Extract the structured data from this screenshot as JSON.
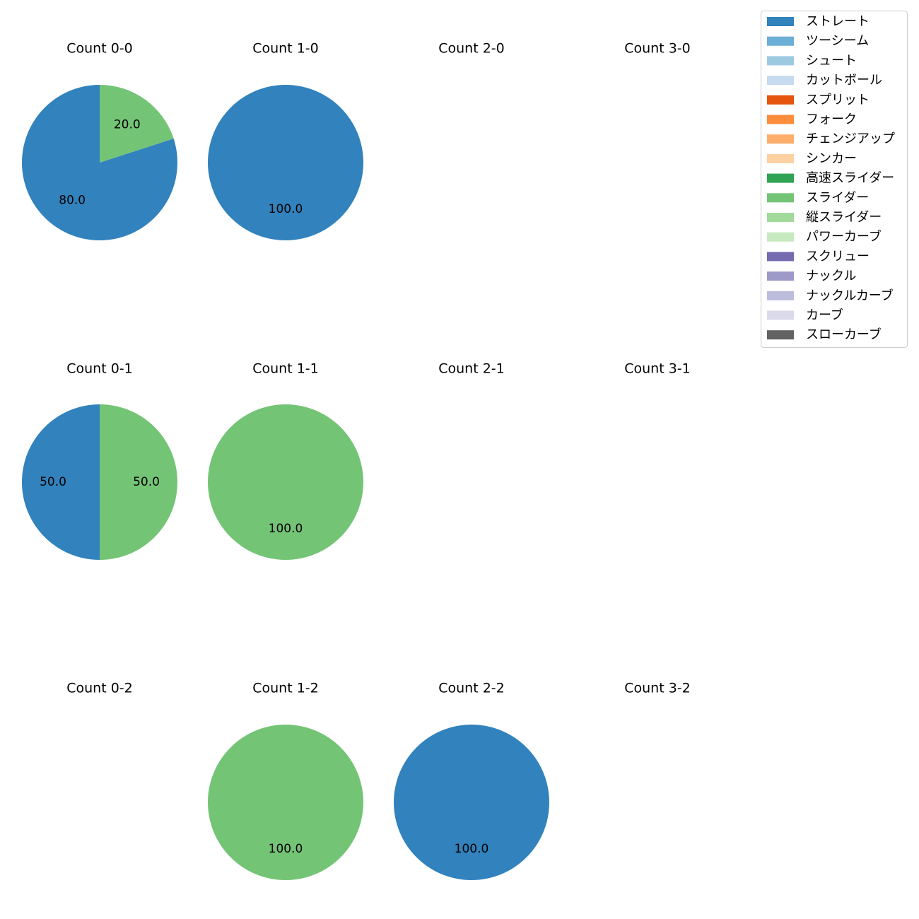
{
  "chart_data": {
    "type": "pie",
    "grid": "3x4 small multiples",
    "legend": {
      "position": "top-right",
      "entries": [
        {
          "name": "ストレート",
          "color": "#3182bd"
        },
        {
          "name": "ツーシーム",
          "color": "#6baed6"
        },
        {
          "name": "シュート",
          "color": "#9ecae1"
        },
        {
          "name": "カットボール",
          "color": "#c6dbef"
        },
        {
          "name": "スプリット",
          "color": "#e6550d"
        },
        {
          "name": "フォーク",
          "color": "#fd8d3c"
        },
        {
          "name": "チェンジアップ",
          "color": "#fdae6b"
        },
        {
          "name": "シンカー",
          "color": "#fdd0a2"
        },
        {
          "name": "高速スライダー",
          "color": "#31a354"
        },
        {
          "name": "スライダー",
          "color": "#74c476"
        },
        {
          "name": "縦スライダー",
          "color": "#a1d99b"
        },
        {
          "name": "パワーカーブ",
          "color": "#c7e9c0"
        },
        {
          "name": "スクリュー",
          "color": "#756bb1"
        },
        {
          "name": "ナックル",
          "color": "#9e9ac8"
        },
        {
          "name": "ナックルカーブ",
          "color": "#bcbddc"
        },
        {
          "name": "カーブ",
          "color": "#dadaeb"
        },
        {
          "name": "スローカーブ",
          "color": "#636363"
        }
      ]
    },
    "panels": [
      {
        "title": "Count 0-0",
        "slices": [
          {
            "label": "ストレート",
            "value": 80.0
          },
          {
            "label": "スライダー",
            "value": 20.0
          }
        ]
      },
      {
        "title": "Count 1-0",
        "slices": [
          {
            "label": "ストレート",
            "value": 100.0
          }
        ]
      },
      {
        "title": "Count 2-0",
        "slices": []
      },
      {
        "title": "Count 3-0",
        "slices": []
      },
      {
        "title": "Count 0-1",
        "slices": [
          {
            "label": "ストレート",
            "value": 50.0
          },
          {
            "label": "スライダー",
            "value": 50.0
          }
        ]
      },
      {
        "title": "Count 1-1",
        "slices": [
          {
            "label": "スライダー",
            "value": 100.0
          }
        ]
      },
      {
        "title": "Count 2-1",
        "slices": []
      },
      {
        "title": "Count 3-1",
        "slices": []
      },
      {
        "title": "Count 0-2",
        "slices": []
      },
      {
        "title": "Count 1-2",
        "slices": [
          {
            "label": "スライダー",
            "value": 100.0
          }
        ]
      },
      {
        "title": "Count 2-2",
        "slices": [
          {
            "label": "ストレート",
            "value": 100.0
          }
        ]
      },
      {
        "title": "Count 3-2",
        "slices": []
      }
    ]
  }
}
